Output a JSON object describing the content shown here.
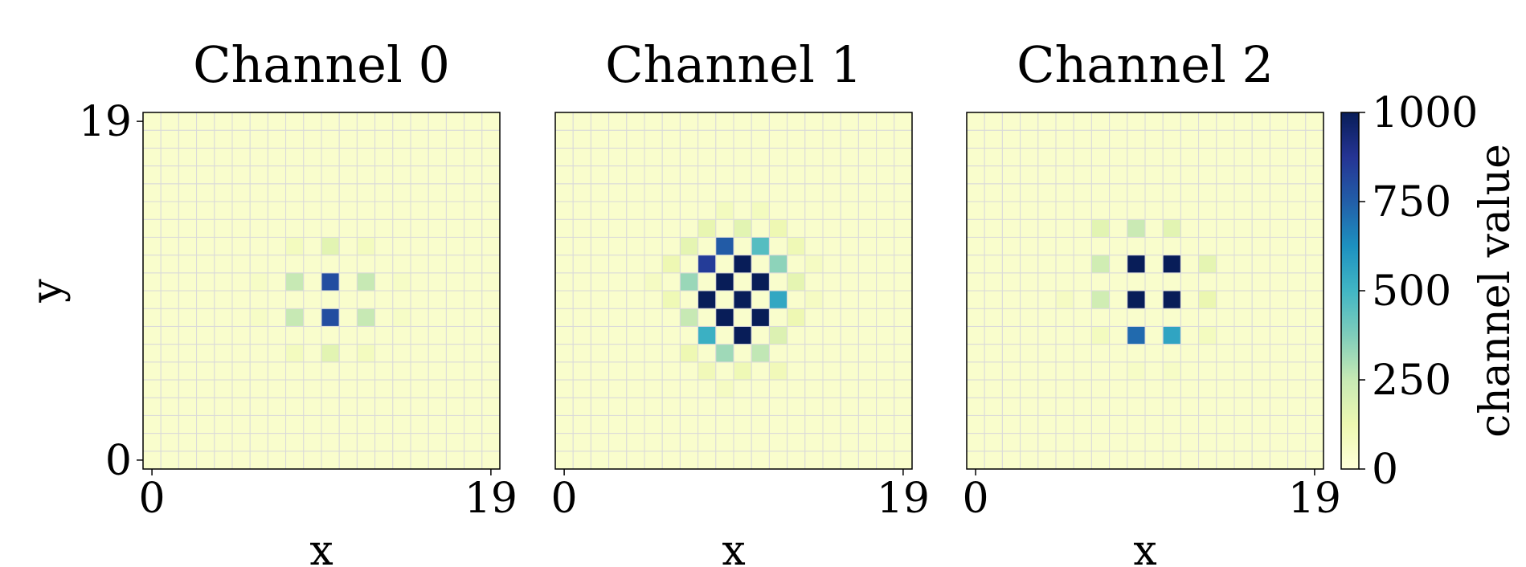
{
  "colormap": {
    "name": "YlGnBu",
    "stops": [
      "#ffffd9",
      "#edf8b1",
      "#c7e9b4",
      "#7fcdbb",
      "#41b6c4",
      "#1d91c0",
      "#225ea8",
      "#253494",
      "#081d58"
    ]
  },
  "gridline_color": "#d9d9d9",
  "colorbar": {
    "label": "channel value",
    "min": 0,
    "max": 1000,
    "ticks": [
      0,
      250,
      500,
      750,
      1000
    ],
    "tick_labels": [
      "0",
      "250",
      "500",
      "750",
      "1000"
    ]
  },
  "chart_data": [
    {
      "type": "heatmap",
      "title": "Channel 0",
      "xlabel": "x",
      "ylabel": "y",
      "x_tick_labels": [
        "0",
        "19"
      ],
      "y_tick_labels": [
        "0",
        "19"
      ],
      "xlim": [
        0,
        19
      ],
      "ylim": [
        0,
        19
      ],
      "background_value": 40,
      "points": [
        {
          "x": 10,
          "y": 10,
          "value": 800
        },
        {
          "x": 10,
          "y": 8,
          "value": 800
        },
        {
          "x": 8,
          "y": 10,
          "value": 250
        },
        {
          "x": 12,
          "y": 10,
          "value": 250
        },
        {
          "x": 8,
          "y": 8,
          "value": 250
        },
        {
          "x": 12,
          "y": 8,
          "value": 250
        },
        {
          "x": 10,
          "y": 12,
          "value": 160
        },
        {
          "x": 10,
          "y": 6,
          "value": 160
        },
        {
          "x": 8,
          "y": 12,
          "value": 80
        },
        {
          "x": 12,
          "y": 12,
          "value": 80
        },
        {
          "x": 8,
          "y": 6,
          "value": 80
        },
        {
          "x": 12,
          "y": 6,
          "value": 80
        },
        {
          "x": 6,
          "y": 10,
          "value": 60
        },
        {
          "x": 6,
          "y": 8,
          "value": 60
        },
        {
          "x": 14,
          "y": 10,
          "value": 60
        },
        {
          "x": 14,
          "y": 8,
          "value": 60
        }
      ]
    },
    {
      "type": "heatmap",
      "title": "Channel 1",
      "xlabel": "x",
      "ylabel": "",
      "x_tick_labels": [
        "0",
        "19"
      ],
      "y_tick_labels": [],
      "xlim": [
        0,
        19
      ],
      "ylim": [
        0,
        19
      ],
      "background_value": 40,
      "points": [
        {
          "x": 9,
          "y": 10,
          "value": 1000
        },
        {
          "x": 10,
          "y": 11,
          "value": 1000
        },
        {
          "x": 10,
          "y": 9,
          "value": 1000
        },
        {
          "x": 11,
          "y": 10,
          "value": 1000
        },
        {
          "x": 8,
          "y": 9,
          "value": 1000
        },
        {
          "x": 9,
          "y": 8,
          "value": 1000
        },
        {
          "x": 11,
          "y": 8,
          "value": 1000
        },
        {
          "x": 10,
          "y": 7,
          "value": 1000
        },
        {
          "x": 8,
          "y": 11,
          "value": 850
        },
        {
          "x": 9,
          "y": 12,
          "value": 760
        },
        {
          "x": 11,
          "y": 12,
          "value": 460
        },
        {
          "x": 12,
          "y": 11,
          "value": 350
        },
        {
          "x": 12,
          "y": 9,
          "value": 550
        },
        {
          "x": 7,
          "y": 10,
          "value": 330
        },
        {
          "x": 7,
          "y": 8,
          "value": 250
        },
        {
          "x": 8,
          "y": 7,
          "value": 520
        },
        {
          "x": 9,
          "y": 6,
          "value": 320
        },
        {
          "x": 11,
          "y": 6,
          "value": 260
        },
        {
          "x": 8,
          "y": 13,
          "value": 140
        },
        {
          "x": 10,
          "y": 13,
          "value": 160
        },
        {
          "x": 12,
          "y": 13,
          "value": 120
        },
        {
          "x": 7,
          "y": 12,
          "value": 150
        },
        {
          "x": 13,
          "y": 12,
          "value": 110
        },
        {
          "x": 6,
          "y": 11,
          "value": 120
        },
        {
          "x": 13,
          "y": 10,
          "value": 150
        },
        {
          "x": 6,
          "y": 9,
          "value": 110
        },
        {
          "x": 13,
          "y": 8,
          "value": 120
        },
        {
          "x": 7,
          "y": 6,
          "value": 120
        },
        {
          "x": 12,
          "y": 7,
          "value": 180
        },
        {
          "x": 8,
          "y": 5,
          "value": 100
        },
        {
          "x": 10,
          "y": 5,
          "value": 110
        },
        {
          "x": 12,
          "y": 5,
          "value": 100
        },
        {
          "x": 9,
          "y": 14,
          "value": 80
        },
        {
          "x": 11,
          "y": 14,
          "value": 80
        },
        {
          "x": 14,
          "y": 11,
          "value": 70
        },
        {
          "x": 14,
          "y": 9,
          "value": 70
        },
        {
          "x": 5,
          "y": 10,
          "value": 70
        },
        {
          "x": 9,
          "y": 4,
          "value": 70
        }
      ]
    },
    {
      "type": "heatmap",
      "title": "Channel 2",
      "xlabel": "x",
      "ylabel": "",
      "x_tick_labels": [
        "0",
        "19"
      ],
      "y_tick_labels": [],
      "xlim": [
        0,
        19
      ],
      "ylim": [
        0,
        19
      ],
      "background_value": 40,
      "points": [
        {
          "x": 9,
          "y": 11,
          "value": 1000
        },
        {
          "x": 11,
          "y": 11,
          "value": 1000
        },
        {
          "x": 9,
          "y": 9,
          "value": 1000
        },
        {
          "x": 11,
          "y": 9,
          "value": 1000
        },
        {
          "x": 9,
          "y": 7,
          "value": 720
        },
        {
          "x": 11,
          "y": 7,
          "value": 560
        },
        {
          "x": 7,
          "y": 11,
          "value": 220
        },
        {
          "x": 7,
          "y": 9,
          "value": 220
        },
        {
          "x": 7,
          "y": 13,
          "value": 160
        },
        {
          "x": 9,
          "y": 13,
          "value": 240
        },
        {
          "x": 11,
          "y": 13,
          "value": 160
        },
        {
          "x": 13,
          "y": 11,
          "value": 150
        },
        {
          "x": 13,
          "y": 9,
          "value": 130
        },
        {
          "x": 7,
          "y": 7,
          "value": 80
        },
        {
          "x": 13,
          "y": 7,
          "value": 80
        },
        {
          "x": 5,
          "y": 9,
          "value": 70
        },
        {
          "x": 9,
          "y": 5,
          "value": 60
        },
        {
          "x": 11,
          "y": 5,
          "value": 60
        }
      ]
    }
  ]
}
